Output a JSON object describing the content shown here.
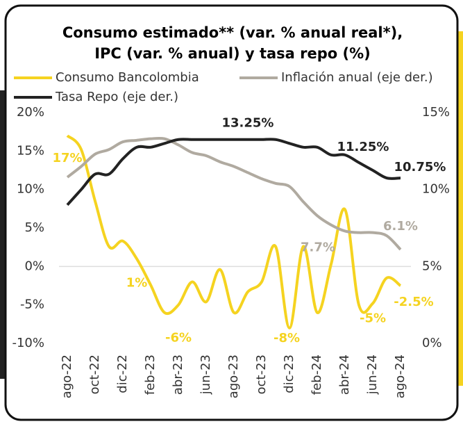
{
  "chart_data": {
    "type": "line",
    "title": [
      "Consumo estimado** (var. % anual real*),",
      "IPC (var. % anual) y tasa repo (%)"
    ],
    "categories": [
      "ago-22",
      null,
      "oct-22",
      null,
      "dic-22",
      null,
      "feb-23",
      null,
      "abr-23",
      null,
      "jun-23",
      null,
      "ago-23",
      null,
      "oct-23",
      null,
      "dic-23",
      null,
      "feb-24",
      null,
      "abr-24",
      null,
      "jun-24",
      null,
      "ago-24"
    ],
    "ylim": [
      -10,
      20
    ],
    "yticks": [
      {
        "value": -10,
        "label": "-10%"
      },
      {
        "value": -5,
        "label": "-5%"
      },
      {
        "value": 0,
        "label": "0%"
      },
      {
        "value": 5,
        "label": "5%"
      },
      {
        "value": 10,
        "label": "10%"
      },
      {
        "value": 15,
        "label": "15%"
      },
      {
        "value": 20,
        "label": "20%"
      }
    ],
    "y2lim": [
      0,
      15
    ],
    "y2ticks": [
      {
        "value": 0,
        "label": "0%"
      },
      {
        "value": 5,
        "label": "5%"
      },
      {
        "value": 10,
        "label": "10%"
      },
      {
        "value": 15,
        "label": "15%"
      }
    ],
    "series": [
      {
        "name": "Consumo Bancolombia",
        "color": "#f5d320",
        "values": [
          17,
          15.2,
          8.5,
          2.6,
          3.3,
          1,
          -2.4,
          -6,
          -5,
          -2,
          -4.6,
          -0.4,
          -6,
          -3.3,
          -2,
          2.6,
          -8,
          2.6,
          -6,
          0.3,
          7.4,
          -5,
          -4.8,
          -1.5,
          -2.5
        ],
        "value_labels": [
          "17%",
          null,
          null,
          null,
          null,
          "1%",
          null,
          "-6%",
          null,
          null,
          null,
          null,
          null,
          null,
          null,
          null,
          "-8%",
          null,
          null,
          null,
          null,
          "-5%",
          null,
          null,
          "-2.5%"
        ]
      },
      {
        "name": "Inflación anual (eje der.)",
        "color": "#b0aaa0",
        "axis": "y2",
        "values": [
          10.8,
          11.5,
          12.3,
          12.6,
          13.1,
          13.2,
          13.3,
          13.3,
          12.9,
          12.4,
          12.2,
          11.8,
          11.5,
          11.1,
          10.7,
          10.4,
          10.2,
          9.2,
          8.3,
          7.7,
          7.3,
          7.2,
          7.2,
          7.0,
          6.1
        ],
        "value_labels": [
          null,
          null,
          null,
          null,
          null,
          null,
          null,
          null,
          null,
          null,
          null,
          null,
          null,
          null,
          null,
          null,
          null,
          null,
          null,
          "7.7%",
          null,
          null,
          null,
          null,
          "6.1%"
        ]
      },
      {
        "name": "Tasa Repo (eje der.)",
        "color": "#222222",
        "axis": "y2",
        "values": [
          9,
          10,
          11,
          11,
          12,
          12.75,
          12.75,
          13,
          13.25,
          13.25,
          13.25,
          13.25,
          13.25,
          13.25,
          13.25,
          13.25,
          13,
          12.75,
          12.75,
          12.25,
          12.25,
          11.75,
          11.25,
          10.75,
          10.75
        ],
        "value_labels": [
          null,
          null,
          null,
          null,
          null,
          null,
          null,
          null,
          null,
          null,
          null,
          null,
          null,
          "13.25%",
          null,
          null,
          null,
          null,
          null,
          null,
          null,
          null,
          "11.25%",
          null,
          "10.75%"
        ]
      }
    ]
  }
}
